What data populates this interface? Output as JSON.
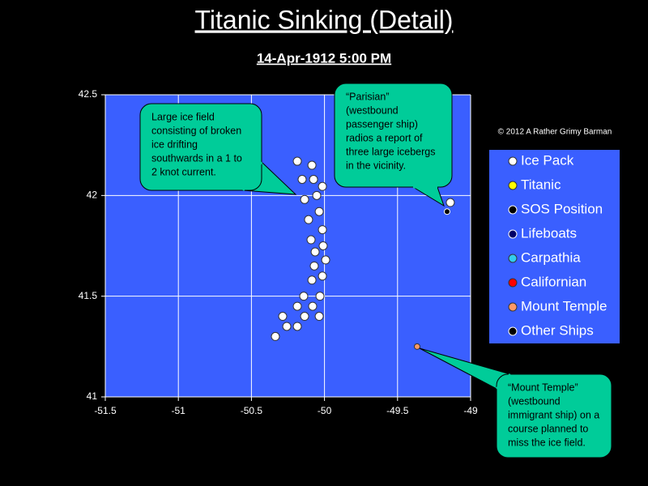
{
  "chart_data": {
    "type": "scatter",
    "title": "Titanic Sinking (Detail)",
    "subtitle": "14-Apr-1912  5:00 PM",
    "credit": "© 2012  A Rather Grimy Barman",
    "xlim": [
      -51.5,
      -49
    ],
    "xticks": [
      -51.5,
      -51,
      -50.5,
      -50,
      -49.5,
      -49
    ],
    "ylim": [
      41,
      42.5
    ],
    "yticks": [
      41,
      41.5,
      42,
      42.5
    ],
    "grid": true,
    "plot_color": "#3a5fff",
    "series": [
      {
        "name": "Ice Pack",
        "color": "#ffffff",
        "x": [
          -50.186,
          -50.086,
          -50.153,
          -50.075,
          -50.136,
          -50.053,
          -50.014,
          -50.036,
          -50.109,
          -50.014,
          -50.092,
          -50.009,
          -50.064,
          -49.992,
          -50.07,
          -50.014,
          -50.086,
          -50.142,
          -50.031,
          -50.186,
          -50.081,
          -50.286,
          -50.136,
          -50.036,
          -50.258,
          -50.186,
          -50.336,
          -49.139
        ],
        "values": [
          42.17,
          42.15,
          42.08,
          42.08,
          41.98,
          42.0,
          42.045,
          41.92,
          41.88,
          41.83,
          41.78,
          41.75,
          41.72,
          41.68,
          41.65,
          41.6,
          41.58,
          41.5,
          41.5,
          41.45,
          41.45,
          41.4,
          41.4,
          41.4,
          41.35,
          41.35,
          41.3,
          41.965
        ]
      },
      {
        "name": "Titanic",
        "color": "#ffff00",
        "x": [],
        "values": []
      },
      {
        "name": "SOS Position",
        "color": "#000000",
        "x": [],
        "values": []
      },
      {
        "name": "Lifeboats",
        "color": "#000066",
        "x": [],
        "values": []
      },
      {
        "name": "Carpathia",
        "color": "#33ccee",
        "x": [],
        "values": []
      },
      {
        "name": "Californian",
        "color": "#ff0000",
        "x": [],
        "values": []
      },
      {
        "name": "Mount Temple",
        "color": "#ff9966",
        "x": [
          -49.366
        ],
        "values": [
          41.25
        ]
      },
      {
        "name": "Other Ships",
        "color": "#000000",
        "x": [
          -49.161
        ],
        "values": [
          41.92
        ]
      }
    ],
    "annotations": [
      {
        "lines": [
          "Large ice field",
          "consisting of broken",
          "ice drifting",
          "southwards in a 1 to",
          "2 knot current."
        ]
      },
      {
        "lines": [
          "“Parisian”",
          "(westbound",
          "passenger ship)",
          "radios a report of",
          "three large icebergs",
          "in the vicinity."
        ]
      },
      {
        "lines": [
          "“Mount Temple”",
          "(westbound",
          "immigrant ship) on a",
          "course planned to",
          "miss the ice field."
        ]
      }
    ]
  }
}
